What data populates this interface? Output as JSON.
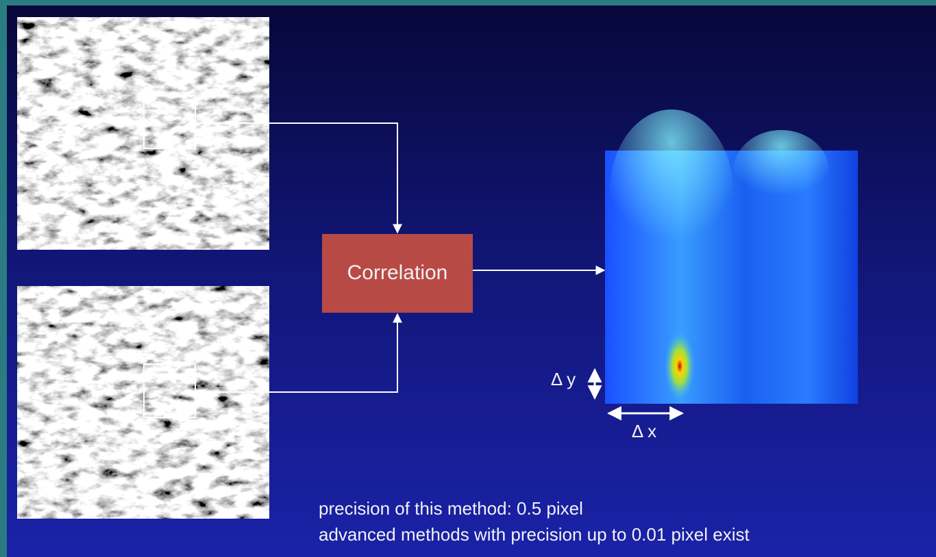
{
  "diagram": {
    "box_label": "Correlation",
    "delta_y": "Δ y",
    "delta_x": "Δ x"
  },
  "notes": [
    "precision of this method: 0.5 pixel",
    "advanced methods with precision up to 0.01 pixel exist"
  ]
}
